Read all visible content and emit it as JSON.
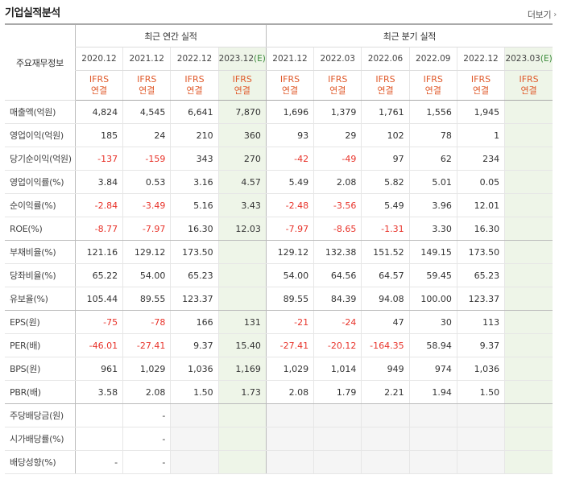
{
  "header": {
    "title": "기업실적분석",
    "more_label": "더보기",
    "more_arrow": "›"
  },
  "table": {
    "corner_label": "주요재무정보",
    "annual_label": "최근 연간 실적",
    "quarter_label": "최근 분기 실적",
    "periods": [
      "2020.12",
      "2021.12",
      "2022.12",
      "2023.12",
      "2021.12",
      "2022.03",
      "2022.06",
      "2022.09",
      "2022.12",
      "2023.03"
    ],
    "estimate_marker": "(E)",
    "basis_top": "IFRS",
    "basis_bottom": "연결",
    "rows": [
      {
        "label": "매출액(억원)",
        "values": [
          "4,824",
          "4,545",
          "6,641",
          "7,870",
          "1,696",
          "1,379",
          "1,761",
          "1,556",
          "1,945",
          ""
        ]
      },
      {
        "label": "영업이익(억원)",
        "values": [
          "185",
          "24",
          "210",
          "360",
          "93",
          "29",
          "102",
          "78",
          "1",
          ""
        ]
      },
      {
        "label": "당기순이익(억원)",
        "values": [
          "-137",
          "-159",
          "343",
          "270",
          "-42",
          "-49",
          "97",
          "62",
          "234",
          ""
        ]
      },
      {
        "label": "영업이익률(%)",
        "values": [
          "3.84",
          "0.53",
          "3.16",
          "4.57",
          "5.49",
          "2.08",
          "5.82",
          "5.01",
          "0.05",
          ""
        ]
      },
      {
        "label": "순이익률(%)",
        "values": [
          "-2.84",
          "-3.49",
          "5.16",
          "3.43",
          "-2.48",
          "-3.56",
          "5.49",
          "3.96",
          "12.01",
          ""
        ]
      },
      {
        "label": "ROE(%)",
        "values": [
          "-8.77",
          "-7.97",
          "16.30",
          "12.03",
          "-7.97",
          "-8.65",
          "-1.31",
          "3.30",
          "16.30",
          ""
        ]
      },
      {
        "label": "부채비율(%)",
        "values": [
          "121.16",
          "129.12",
          "173.50",
          "",
          "129.12",
          "132.38",
          "151.52",
          "149.15",
          "173.50",
          ""
        ]
      },
      {
        "label": "당좌비율(%)",
        "values": [
          "65.22",
          "54.00",
          "65.23",
          "",
          "54.00",
          "64.56",
          "64.57",
          "59.45",
          "65.23",
          ""
        ]
      },
      {
        "label": "유보율(%)",
        "values": [
          "105.44",
          "89.55",
          "123.37",
          "",
          "89.55",
          "84.39",
          "94.08",
          "100.00",
          "123.37",
          ""
        ]
      },
      {
        "label": "EPS(원)",
        "values": [
          "-75",
          "-78",
          "166",
          "131",
          "-21",
          "-24",
          "47",
          "30",
          "113",
          ""
        ]
      },
      {
        "label": "PER(배)",
        "values": [
          "-46.01",
          "-27.41",
          "9.37",
          "15.40",
          "-27.41",
          "-20.12",
          "-164.35",
          "58.94",
          "9.37",
          ""
        ]
      },
      {
        "label": "BPS(원)",
        "values": [
          "961",
          "1,029",
          "1,036",
          "1,169",
          "1,029",
          "1,014",
          "949",
          "974",
          "1,036",
          ""
        ]
      },
      {
        "label": "PBR(배)",
        "values": [
          "3.58",
          "2.08",
          "1.50",
          "1.73",
          "2.08",
          "1.79",
          "2.21",
          "1.94",
          "1.50",
          ""
        ]
      },
      {
        "label": "주당배당금(원)",
        "values": [
          "",
          "-",
          "",
          "",
          "",
          "",
          "",
          "",
          "",
          ""
        ]
      },
      {
        "label": "시가배당률(%)",
        "values": [
          "",
          "-",
          "",
          "",
          "",
          "",
          "",
          "",
          "",
          ""
        ]
      },
      {
        "label": "배당성향(%)",
        "values": [
          "-",
          "-",
          "",
          "",
          "",
          "",
          "",
          "",
          "",
          ""
        ]
      }
    ]
  }
}
